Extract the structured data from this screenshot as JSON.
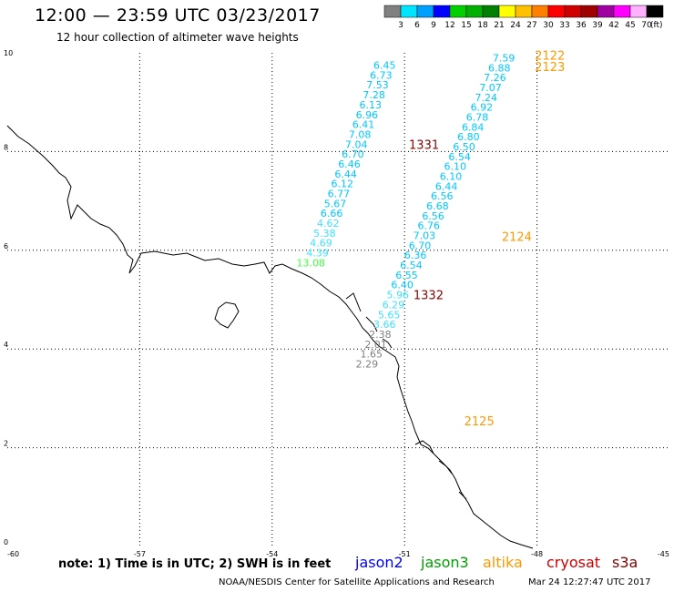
{
  "header": {
    "title": "12:00 — 23:59 UTC 03/23/2017",
    "subtitle": "12 hour collection of altimeter wave heights"
  },
  "colorbar": {
    "unit_label": "(ft)",
    "entries": [
      {
        "label": "3",
        "color": "#808080"
      },
      {
        "label": "6",
        "color": "#00e5ff"
      },
      {
        "label": "9",
        "color": "#00a0ff"
      },
      {
        "label": "12",
        "color": "#0000ff"
      },
      {
        "label": "15",
        "color": "#00d000"
      },
      {
        "label": "18",
        "color": "#00b000"
      },
      {
        "label": "21",
        "color": "#008000"
      },
      {
        "label": "24",
        "color": "#ffff00"
      },
      {
        "label": "27",
        "color": "#ffc000"
      },
      {
        "label": "30",
        "color": "#ff8000"
      },
      {
        "label": "33",
        "color": "#ff0000"
      },
      {
        "label": "36",
        "color": "#d00000"
      },
      {
        "label": "39",
        "color": "#a00000"
      },
      {
        "label": "42",
        "color": "#a000a0"
      },
      {
        "label": "45",
        "color": "#ff00ff"
      },
      {
        "label": "70",
        "color": "#ffb0ff"
      },
      {
        "label": "",
        "color": "#000000"
      }
    ]
  },
  "axes": {
    "x_ticks": [
      "-60",
      "-57",
      "-54",
      "-51",
      "-48",
      "-45"
    ],
    "y_ticks": [
      "0",
      "2",
      "4",
      "6",
      "8",
      "10"
    ]
  },
  "map": {
    "lon_range": [
      -60,
      -45
    ],
    "lat_range": [
      0,
      10
    ],
    "colors": {
      "grey": "#808080",
      "cyan": "#00c8ff",
      "light": "#40e0ff",
      "green": "#40ff40",
      "orange": "#ff9900",
      "darkred": "#8b0000"
    },
    "tracks": [
      {
        "name": "track-west",
        "lon": -51.2,
        "lat_start": 9.75,
        "lat_step": -0.2,
        "lon_step": -0.08,
        "values": [
          {
            "v": "6.45",
            "c": "cyan"
          },
          {
            "v": "6.73",
            "c": "cyan"
          },
          {
            "v": "7.53",
            "c": "cyan"
          },
          {
            "v": "7.28",
            "c": "cyan"
          },
          {
            "v": "6.13",
            "c": "cyan"
          },
          {
            "v": "6.96",
            "c": "cyan"
          },
          {
            "v": "6.41",
            "c": "cyan"
          },
          {
            "v": "7.08",
            "c": "cyan"
          },
          {
            "v": "7.04",
            "c": "cyan"
          },
          {
            "v": "6.70",
            "c": "cyan"
          },
          {
            "v": "6.46",
            "c": "cyan"
          },
          {
            "v": "6.44",
            "c": "cyan"
          },
          {
            "v": "6.12",
            "c": "cyan"
          },
          {
            "v": "6.77",
            "c": "cyan"
          },
          {
            "v": "5.67",
            "c": "cyan"
          },
          {
            "v": "6.66",
            "c": "cyan"
          },
          {
            "v": "4.62",
            "c": "light"
          },
          {
            "v": "5.38",
            "c": "light"
          },
          {
            "v": "4.69",
            "c": "light"
          },
          {
            "v": "4.39",
            "c": "light"
          },
          {
            "v": "13.08",
            "c": "green"
          }
        ]
      },
      {
        "name": "track-east",
        "lon": -48.5,
        "lat_start": 9.9,
        "lat_step": -0.2,
        "lon_step": -0.1,
        "values": [
          {
            "v": "7.59",
            "c": "cyan"
          },
          {
            "v": "6.88",
            "c": "cyan"
          },
          {
            "v": "7.26",
            "c": "cyan"
          },
          {
            "v": "7.07",
            "c": "cyan"
          },
          {
            "v": "7.24",
            "c": "cyan"
          },
          {
            "v": "6.92",
            "c": "cyan"
          },
          {
            "v": "6.78",
            "c": "cyan"
          },
          {
            "v": "6.84",
            "c": "cyan"
          },
          {
            "v": "6.80",
            "c": "cyan"
          },
          {
            "v": "6.50",
            "c": "cyan"
          },
          {
            "v": "6.54",
            "c": "cyan"
          },
          {
            "v": "6.10",
            "c": "cyan"
          },
          {
            "v": "6.10",
            "c": "cyan"
          },
          {
            "v": "6.44",
            "c": "cyan"
          },
          {
            "v": "6.56",
            "c": "cyan"
          },
          {
            "v": "6.68",
            "c": "cyan"
          },
          {
            "v": "6.56",
            "c": "cyan"
          },
          {
            "v": "6.76",
            "c": "cyan"
          },
          {
            "v": "7.03",
            "c": "cyan"
          },
          {
            "v": "6.70",
            "c": "cyan"
          },
          {
            "v": "6.36",
            "c": "cyan"
          },
          {
            "v": "6.54",
            "c": "cyan"
          },
          {
            "v": "6.55",
            "c": "cyan"
          },
          {
            "v": "6.40",
            "c": "cyan"
          },
          {
            "v": "5.96",
            "c": "light"
          },
          {
            "v": "6.29",
            "c": "light"
          },
          {
            "v": "5.65",
            "c": "light"
          },
          {
            "v": "3.66",
            "c": "light"
          },
          {
            "v": "2.38",
            "c": "grey"
          },
          {
            "v": "2.01",
            "c": "grey"
          },
          {
            "v": "1.65",
            "c": "grey"
          },
          {
            "v": "2.29",
            "c": "grey"
          }
        ]
      }
    ],
    "pass_labels": [
      {
        "text": "2122",
        "lon": -48.05,
        "lat": 9.95,
        "c": "orange"
      },
      {
        "text": "2123",
        "lon": -48.05,
        "lat": 9.72,
        "c": "orange"
      },
      {
        "text": "1331",
        "lon": -50.9,
        "lat": 8.15,
        "c": "darkred"
      },
      {
        "text": "2124",
        "lon": -48.8,
        "lat": 6.28,
        "c": "orange"
      },
      {
        "text": "1332",
        "lon": -50.8,
        "lat": 5.1,
        "c": "darkred"
      },
      {
        "text": "2125",
        "lon": -49.65,
        "lat": 2.55,
        "c": "orange"
      }
    ]
  },
  "footer": {
    "note": "note: 1) Time is in UTC; 2) SWH is in feet",
    "satellites": [
      {
        "label": "jason2",
        "color": "#0000ff"
      },
      {
        "label": "jason3",
        "color": "#00a000"
      },
      {
        "label": "altika",
        "color": "#ff9900"
      },
      {
        "label": "cryosat",
        "color": "#cc0000"
      },
      {
        "label": "s3a",
        "color": "#800000"
      }
    ],
    "credit": "NOAA/NESDIS Center for Satellite Applications and Research",
    "timestamp": "Mar 24 12:27:47 UTC 2017"
  }
}
